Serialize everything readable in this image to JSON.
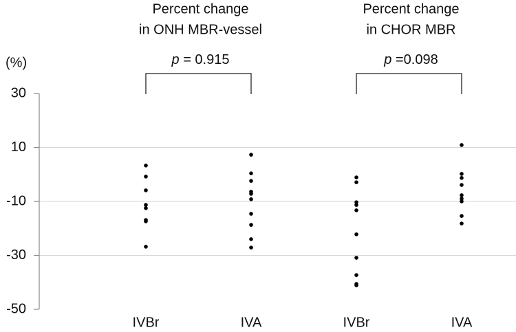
{
  "chart_data": {
    "type": "strip",
    "y_label": "(%)",
    "ylim": [
      -50,
      30
    ],
    "yticks": [
      -50,
      -30,
      -10,
      10,
      30
    ],
    "grid": true,
    "color": "#000000",
    "categories": [
      "IVBr",
      "IVA",
      "IVBr",
      "IVA"
    ],
    "values": [
      [
        3.3,
        -0.8,
        -5.9,
        -11.3,
        -12.5,
        -16.9,
        -17.4,
        -26.8
      ],
      [
        7.3,
        0.4,
        -2.4,
        -6.4,
        -7.2,
        -9.2,
        -14.6,
        -18.7,
        -24,
        -27.1
      ],
      [
        -1.1,
        -2.9,
        -10.3,
        -11.3,
        -13.3,
        -22.2,
        -30.9,
        -37.3,
        -40.6,
        -41.1
      ],
      [
        10.9,
        0.2,
        -1.3,
        -3.9,
        -7.7,
        -9,
        -10,
        -15.4,
        -18.2
      ]
    ],
    "groups": [
      {
        "title": [
          "Percent change",
          "in ONH MBR-vessel"
        ],
        "stat": "p",
        "stat_value": " = 0.915"
      },
      {
        "title": [
          "Percent change",
          "in CHOR MBR"
        ],
        "stat": "p",
        "stat_value": " =0.098"
      }
    ]
  }
}
